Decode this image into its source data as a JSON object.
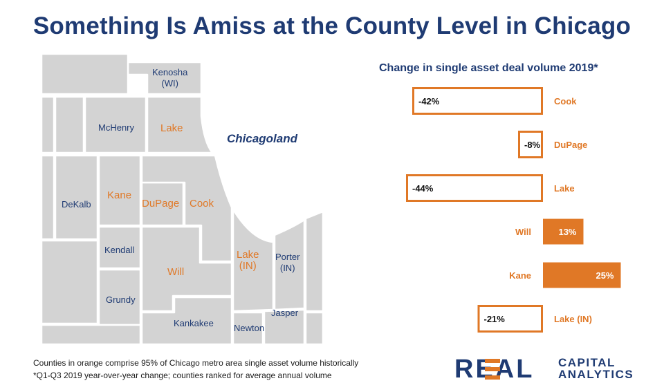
{
  "title": "Something Is Amiss at the County Level in Chicago",
  "map": {
    "region_label": "Chicagoland",
    "counties": [
      {
        "name": "Kenosha\n(WI)",
        "highlight": false
      },
      {
        "name": "McHenry",
        "highlight": false
      },
      {
        "name": "Lake",
        "highlight": true
      },
      {
        "name": "DeKalb",
        "highlight": false
      },
      {
        "name": "Kane",
        "highlight": true
      },
      {
        "name": "DuPage",
        "highlight": true
      },
      {
        "name": "Cook",
        "highlight": true
      },
      {
        "name": "Kendall",
        "highlight": false
      },
      {
        "name": "Will",
        "highlight": true
      },
      {
        "name": "Lake\n(IN)",
        "highlight": true
      },
      {
        "name": "Porter\n(IN)",
        "highlight": false
      },
      {
        "name": "Grundy",
        "highlight": false
      },
      {
        "name": "Kankakee",
        "highlight": false
      },
      {
        "name": "Newton",
        "highlight": false
      },
      {
        "name": "Jasper",
        "highlight": false
      }
    ]
  },
  "chart_data": {
    "type": "bar",
    "orientation": "horizontal",
    "title": "Change in single asset deal volume 2019*",
    "categories": [
      "Cook",
      "DuPage",
      "Lake",
      "Will",
      "Kane",
      "Lake (IN)"
    ],
    "values": [
      -42,
      -8,
      -44,
      13,
      25,
      -21
    ],
    "value_labels": [
      "-42%",
      "-8%",
      "-44%",
      "13%",
      "25%",
      "-21%"
    ],
    "unit": "%",
    "xlim": [
      -44,
      25
    ],
    "encoding": "negative values outlined, positive values filled"
  },
  "footnotes": [
    "Counties in orange comprise 95% of Chicago metro area single asset volume historically",
    "*Q1-Q3 2019 year-over-year change; counties ranked for average annual volume"
  ],
  "logo": {
    "word": "REAL",
    "line1": "CAPITAL",
    "line2": "ANALYTICS"
  },
  "colors": {
    "navy": "#1f3b73",
    "orange": "#e07826",
    "map_fill": "#d3d3d3",
    "map_border": "#ffffff"
  }
}
